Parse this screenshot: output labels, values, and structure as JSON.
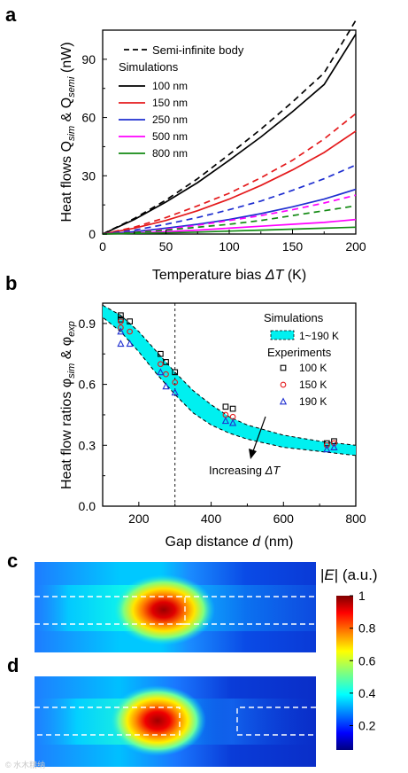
{
  "panel_labels": {
    "a": "a",
    "b": "b",
    "c": "c",
    "d": "d"
  },
  "watermark": "© 水木精纳",
  "chart_data": [
    {
      "type": "line",
      "panel": "a",
      "xlabel": "Temperature bias ΔT (K)",
      "ylabel": "Heat flows Q_sim & Q_semi (nW)",
      "xlabel_parts": {
        "main": "Temperature bias ",
        "sym": "ΔT",
        "unit": " (K)"
      },
      "ylabel_parts": {
        "main": "Heat flows Q",
        "sub1": "sim",
        "amp": " & Q",
        "sub2": "semi",
        "unit": " (nW)"
      },
      "xlim": [
        0,
        200
      ],
      "ylim": [
        0,
        105
      ],
      "xticks": [
        0,
        50,
        100,
        150,
        200
      ],
      "yticks": [
        0,
        30,
        60,
        90
      ],
      "legend_header_line": "Semi-infinite body",
      "legend_title": "Simulations",
      "x": [
        0,
        25,
        50,
        75,
        100,
        125,
        150,
        175,
        200
      ],
      "series": [
        {
          "name": "100 nm",
          "color": "#000000",
          "solid": [
            0,
            7.5,
            16.5,
            26.5,
            38,
            50,
            63,
            77,
            103
          ],
          "dashed": [
            0,
            8,
            17.5,
            28.5,
            41,
            54,
            68,
            83,
            110
          ]
        },
        {
          "name": "150 nm",
          "color": "#e41a1c",
          "solid": [
            0,
            3,
            7,
            12,
            18,
            25,
            33,
            42,
            53
          ],
          "dashed": [
            0,
            3.5,
            8.5,
            14.5,
            21,
            29,
            38,
            49,
            62
          ]
        },
        {
          "name": "250 nm",
          "color": "#1f2fd0",
          "solid": [
            0,
            1.2,
            3,
            5,
            7.5,
            10.5,
            14,
            18,
            23
          ],
          "dashed": [
            0,
            2,
            5,
            8.5,
            12.5,
            17,
            22.5,
            28.5,
            35.5
          ]
        },
        {
          "name": "500 nm",
          "color": "#ff00ff",
          "solid": [
            0,
            0.5,
            1.2,
            2,
            3,
            4,
            5,
            6,
            7.5
          ],
          "dashed": [
            0,
            1,
            2.5,
            4.5,
            7,
            9.5,
            12.5,
            16,
            20
          ]
        },
        {
          "name": "800 nm",
          "color": "#138a13",
          "solid": [
            0,
            0.3,
            0.6,
            1,
            1.5,
            2,
            2.5,
            3,
            3.5
          ],
          "dashed": [
            0,
            0.8,
            2,
            3.5,
            5,
            7,
            9.5,
            12,
            14.5
          ]
        }
      ]
    },
    {
      "type": "scatter",
      "panel": "b",
      "xlabel": "Gap distance d (nm)",
      "ylabel": "Heat flow ratios φ_sim & φ_exp",
      "xlabel_parts": {
        "main": "Gap distance ",
        "sym": "d",
        "unit": " (nm)"
      },
      "ylabel_parts": {
        "main": "Heat flow ratios φ",
        "sub1": "sim",
        "amp": " & φ",
        "sub2": "exp"
      },
      "xlim": [
        100,
        800
      ],
      "ylim": [
        0,
        1.0
      ],
      "xticks": [
        200,
        400,
        600,
        800
      ],
      "yticks": [
        0.0,
        0.3,
        0.6,
        0.9
      ],
      "vline_x": 300,
      "band": {
        "name": "1~190 K",
        "color": "#00f0f0",
        "x": [
          100,
          150,
          200,
          250,
          300,
          350,
          400,
          450,
          500,
          600,
          700,
          800
        ],
        "upper": [
          0.99,
          0.94,
          0.86,
          0.76,
          0.66,
          0.57,
          0.5,
          0.44,
          0.4,
          0.35,
          0.32,
          0.3
        ],
        "lower": [
          0.93,
          0.86,
          0.76,
          0.65,
          0.55,
          0.46,
          0.4,
          0.36,
          0.33,
          0.29,
          0.27,
          0.25
        ]
      },
      "legend_title_sim": "Simulations",
      "legend_title_exp": "Experiments",
      "annotation": "Increasing ΔT",
      "annotation_parts": {
        "main": "Increasing ",
        "sym": "ΔT"
      },
      "experiments": [
        {
          "name": "100 K",
          "marker": "square",
          "color": "#000000",
          "points": [
            [
              150,
              0.94
            ],
            [
              150,
              0.92
            ],
            [
              175,
              0.91
            ],
            [
              260,
              0.75
            ],
            [
              275,
              0.71
            ],
            [
              300,
              0.66
            ],
            [
              440,
              0.49
            ],
            [
              460,
              0.48
            ],
            [
              720,
              0.31
            ],
            [
              740,
              0.32
            ]
          ]
        },
        {
          "name": "150 K",
          "marker": "circle",
          "color": "#e41a1c",
          "points": [
            [
              150,
              0.91
            ],
            [
              150,
              0.88
            ],
            [
              175,
              0.86
            ],
            [
              260,
              0.7
            ],
            [
              275,
              0.65
            ],
            [
              300,
              0.61
            ],
            [
              440,
              0.45
            ],
            [
              460,
              0.44
            ],
            [
              720,
              0.3
            ],
            [
              740,
              0.31
            ]
          ]
        },
        {
          "name": "190 K",
          "marker": "triangle",
          "color": "#1f2fd0",
          "points": [
            [
              150,
              0.86
            ],
            [
              150,
              0.8
            ],
            [
              175,
              0.8
            ],
            [
              260,
              0.66
            ],
            [
              275,
              0.59
            ],
            [
              300,
              0.56
            ],
            [
              440,
              0.42
            ],
            [
              460,
              0.41
            ],
            [
              720,
              0.28
            ],
            [
              740,
              0.29
            ]
          ]
        }
      ]
    },
    {
      "type": "heatmap",
      "panel": "colorbar",
      "title": "|E| (a.u.)",
      "title_parts": {
        "open": "|",
        "sym": "E",
        "close": "| (a.u.)"
      },
      "colormap": "jet",
      "range": [
        0.05,
        1
      ],
      "ticks": [
        "1",
        "0.8",
        "0.6",
        "0.4",
        "0.2"
      ],
      "tick_values": [
        1,
        0.8,
        0.6,
        0.4,
        0.2
      ]
    }
  ]
}
